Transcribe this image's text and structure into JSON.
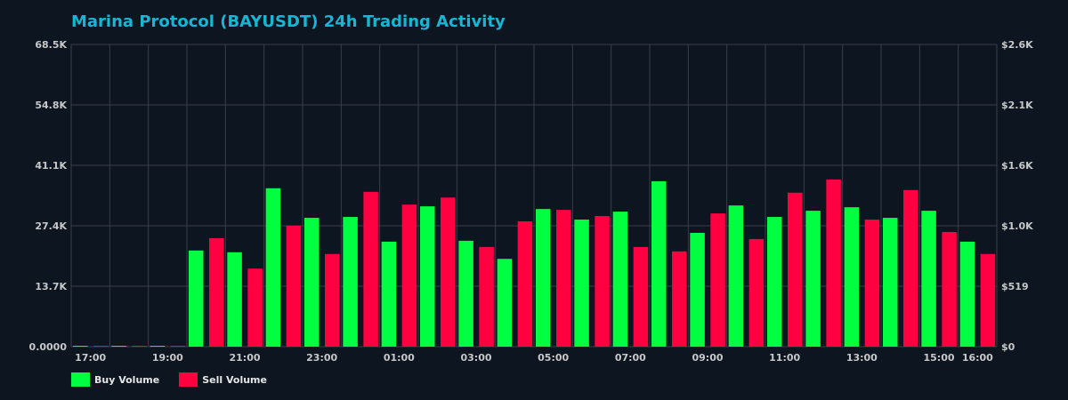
{
  "chart_data": {
    "type": "bar",
    "title": "Marina Protocol (BAYUSDT) 24h Trading Activity",
    "categories": [
      "17:00",
      "18:00",
      "19:00",
      "20:00",
      "21:00",
      "22:00",
      "23:00",
      "00:00",
      "01:00",
      "02:00",
      "03:00",
      "04:00",
      "05:00",
      "06:00",
      "07:00",
      "08:00",
      "09:00",
      "10:00",
      "11:00",
      "12:00",
      "13:00",
      "14:00",
      "15:00",
      "16:00"
    ],
    "x_tick_labels": [
      "17:00",
      "19:00",
      "21:00",
      "23:00",
      "01:00",
      "03:00",
      "05:00",
      "07:00",
      "09:00",
      "11:00",
      "13:00",
      "15:00",
      "16:00"
    ],
    "series": [
      {
        "name": "Buy Volume",
        "color": "#00ff41",
        "values": [
          200,
          200,
          200,
          21800,
          21400,
          35900,
          29200,
          29400,
          23800,
          31800,
          24000,
          19900,
          31200,
          28800,
          30600,
          37500,
          25800,
          32000,
          29400,
          30800,
          31600,
          29200,
          30800,
          23800
        ]
      },
      {
        "name": "Sell Volume",
        "color": "#ff0040",
        "values": [
          200,
          200,
          200,
          24600,
          17700,
          27400,
          21000,
          35100,
          32200,
          33800,
          22600,
          28400,
          31000,
          29600,
          22600,
          21600,
          30200,
          24400,
          34900,
          37900,
          28800,
          35500,
          26000,
          21000
        ]
      }
    ],
    "ylim": [
      0,
      68500
    ],
    "y_tick_labels": [
      "0.0000",
      "13.7K",
      "27.4K",
      "41.1K",
      "54.8K",
      "68.5K"
    ],
    "y2_tick_labels": [
      "$0",
      "$519",
      "$1.0K",
      "$1.6K",
      "$2.1K",
      "$2.6K"
    ],
    "grid": true,
    "legend_placement": "bottom-left",
    "background": "#0c1520",
    "grid_color": "#3a4049",
    "title_color": "#1ab4d4"
  }
}
